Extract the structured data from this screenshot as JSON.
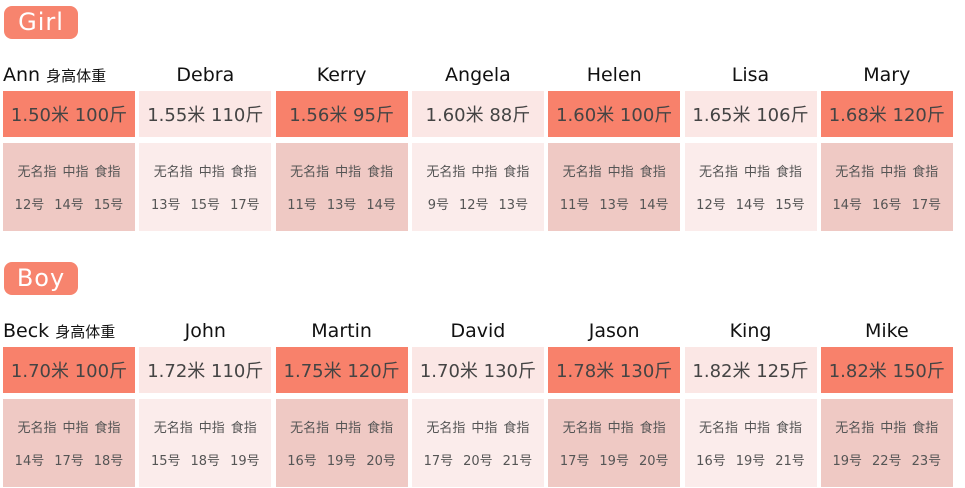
{
  "sections": [
    {
      "badge": "Girl",
      "note": "身高体重",
      "finger_labels": [
        "无名指",
        "中指",
        "食指"
      ],
      "people": [
        {
          "name": "Ann",
          "stats": "1.50米 100斤",
          "sizes": [
            "12号",
            "14号",
            "15号"
          ]
        },
        {
          "name": "Debra",
          "stats": "1.55米 110斤",
          "sizes": [
            "13号",
            "15号",
            "17号"
          ]
        },
        {
          "name": "Kerry",
          "stats": "1.56米 95斤",
          "sizes": [
            "11号",
            "13号",
            "14号"
          ]
        },
        {
          "name": "Angela",
          "stats": "1.60米 88斤",
          "sizes": [
            "9号",
            "12号",
            "13号"
          ]
        },
        {
          "name": "Helen",
          "stats": "1.60米 100斤",
          "sizes": [
            "11号",
            "13号",
            "14号"
          ]
        },
        {
          "name": "Lisa",
          "stats": "1.65米 106斤",
          "sizes": [
            "12号",
            "14号",
            "15号"
          ]
        },
        {
          "name": "Mary",
          "stats": "1.68米 120斤",
          "sizes": [
            "14号",
            "16号",
            "17号"
          ]
        }
      ]
    },
    {
      "badge": "Boy",
      "note": "身高体重",
      "finger_labels": [
        "无名指",
        "中指",
        "食指"
      ],
      "people": [
        {
          "name": "Beck",
          "stats": "1.70米 100斤",
          "sizes": [
            "14号",
            "17号",
            "18号"
          ]
        },
        {
          "name": "John",
          "stats": "1.72米 110斤",
          "sizes": [
            "15号",
            "18号",
            "19号"
          ]
        },
        {
          "name": "Martin",
          "stats": "1.75米 120斤",
          "sizes": [
            "16号",
            "19号",
            "20号"
          ]
        },
        {
          "name": "David",
          "stats": "1.70米 130斤",
          "sizes": [
            "17号",
            "20号",
            "21号"
          ]
        },
        {
          "name": "Jason",
          "stats": "1.78米 130斤",
          "sizes": [
            "17号",
            "19号",
            "20号"
          ]
        },
        {
          "name": "King",
          "stats": "1.82米 125斤",
          "sizes": [
            "16号",
            "19号",
            "21号"
          ]
        },
        {
          "name": "Mike",
          "stats": "1.82米 150斤",
          "sizes": [
            "19号",
            "22号",
            "23号"
          ]
        }
      ]
    }
  ]
}
